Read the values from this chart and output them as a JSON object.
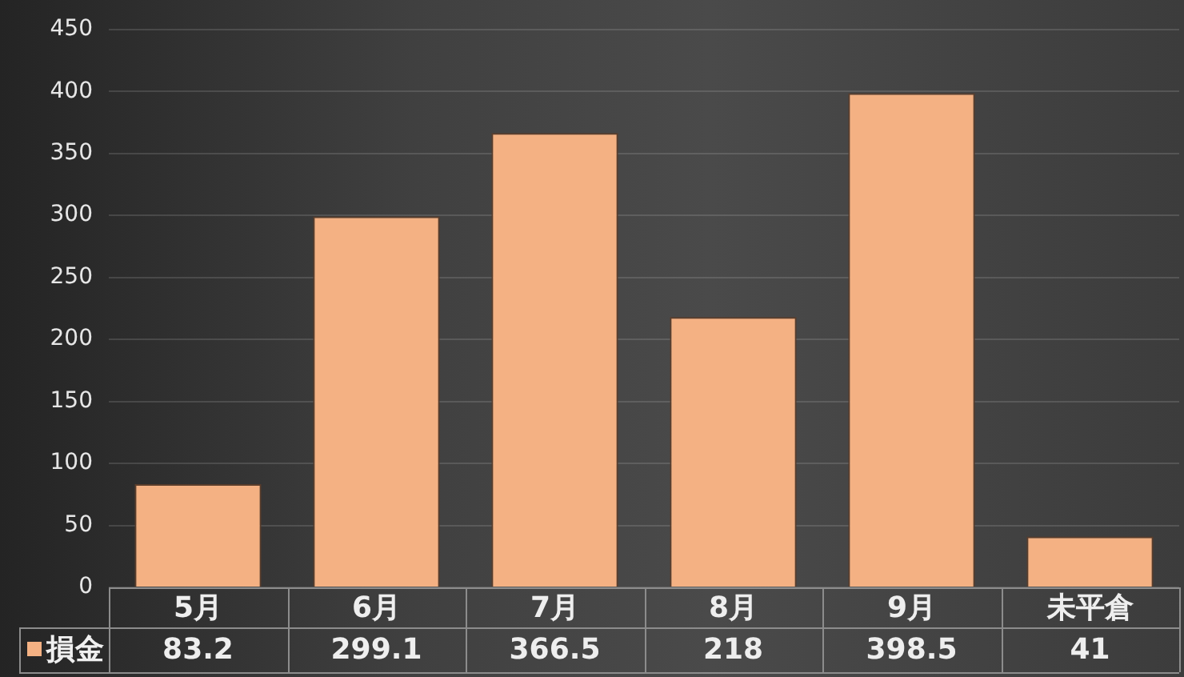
{
  "chart_data": {
    "type": "bar",
    "categories": [
      "5月",
      "6月",
      "7月",
      "8月",
      "9月",
      "未平倉"
    ],
    "series": [
      {
        "name": "損金",
        "color": "#f4b183",
        "values": [
          83.2,
          299.1,
          366.5,
          218,
          398.5,
          41
        ]
      }
    ],
    "ylim": [
      0,
      450
    ],
    "yticks": [
      0,
      50,
      100,
      150,
      200,
      250,
      300,
      350,
      400,
      450
    ],
    "grid": "y",
    "legend": "bottom",
    "data_labels": true
  }
}
